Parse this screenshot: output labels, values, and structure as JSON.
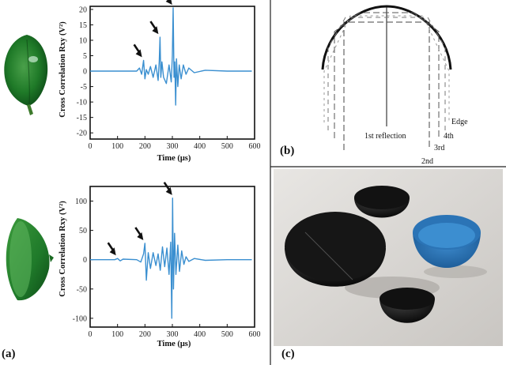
{
  "figure": {
    "panel_a_label": "(a)",
    "panel_b_label": "(b)",
    "panel_c_label": "(c)"
  },
  "chart_data": [
    {
      "type": "line",
      "xlabel": "Time (μs)",
      "ylabel": "Cross Correlation Rxy (V²)",
      "xlim": [
        0,
        600
      ],
      "ylim": [
        -22,
        21
      ],
      "xticks": [
        "0",
        "100",
        "200",
        "300",
        "400",
        "500",
        "600"
      ],
      "yticks": [
        "20",
        "15",
        "10",
        "5",
        "0",
        "-5",
        "-10",
        "-15",
        "-20"
      ],
      "color": "#3a8fd0",
      "grid": false,
      "peak_arrows_x": [
        195,
        255,
        305
      ],
      "series": [
        {
          "x": [
            0,
            170,
            180,
            188,
            195,
            200,
            205,
            212,
            220,
            230,
            240,
            248,
            252,
            255,
            258,
            262,
            268,
            278,
            288,
            296,
            300,
            303,
            306,
            309,
            312,
            315,
            320,
            325,
            332,
            340,
            350,
            360,
            380,
            420,
            500,
            590
          ],
          "y": [
            0,
            0,
            1,
            -1,
            3.5,
            -2.5,
            0.5,
            -1,
            1.5,
            -2,
            2,
            -3,
            3,
            11,
            -2,
            3,
            -2,
            -4,
            2,
            -3.5,
            5,
            20.5,
            -2,
            3,
            -11,
            4,
            -5,
            2,
            -2.5,
            2,
            -1,
            1,
            -0.5,
            0.3,
            0,
            0
          ]
        }
      ]
    },
    {
      "type": "line",
      "xlabel": "Time (μs)",
      "ylabel": "Cross Correlation Rxy (V²)",
      "xlim": [
        0,
        600
      ],
      "ylim": [
        -115,
        125
      ],
      "xticks": [
        "0",
        "100",
        "200",
        "300",
        "400",
        "500",
        "600"
      ],
      "yticks": [
        "100",
        "50",
        "0",
        "-50",
        "-100"
      ],
      "color": "#3a8fd0",
      "grid": false,
      "peak_arrows_x": [
        100,
        200,
        305
      ],
      "series": [
        {
          "x": [
            0,
            90,
            100,
            110,
            120,
            170,
            185,
            195,
            200,
            205,
            212,
            220,
            230,
            240,
            248,
            256,
            264,
            272,
            280,
            288,
            294,
            298,
            301,
            304,
            308,
            313,
            320,
            326,
            334,
            342,
            350,
            360,
            380,
            420,
            500,
            590
          ],
          "y": [
            0,
            0,
            2,
            -2,
            1,
            0,
            -4,
            10,
            28,
            -35,
            12,
            -15,
            12,
            -10,
            10,
            -18,
            22,
            -12,
            20,
            -25,
            30,
            -100,
            105,
            -50,
            45,
            -25,
            25,
            -20,
            15,
            -8,
            5,
            -3,
            2,
            -1,
            0,
            0
          ]
        }
      ]
    }
  ],
  "diagram": {
    "labels": [
      "1st reflection",
      "2nd",
      "3rd",
      "4th",
      "Edge"
    ]
  }
}
